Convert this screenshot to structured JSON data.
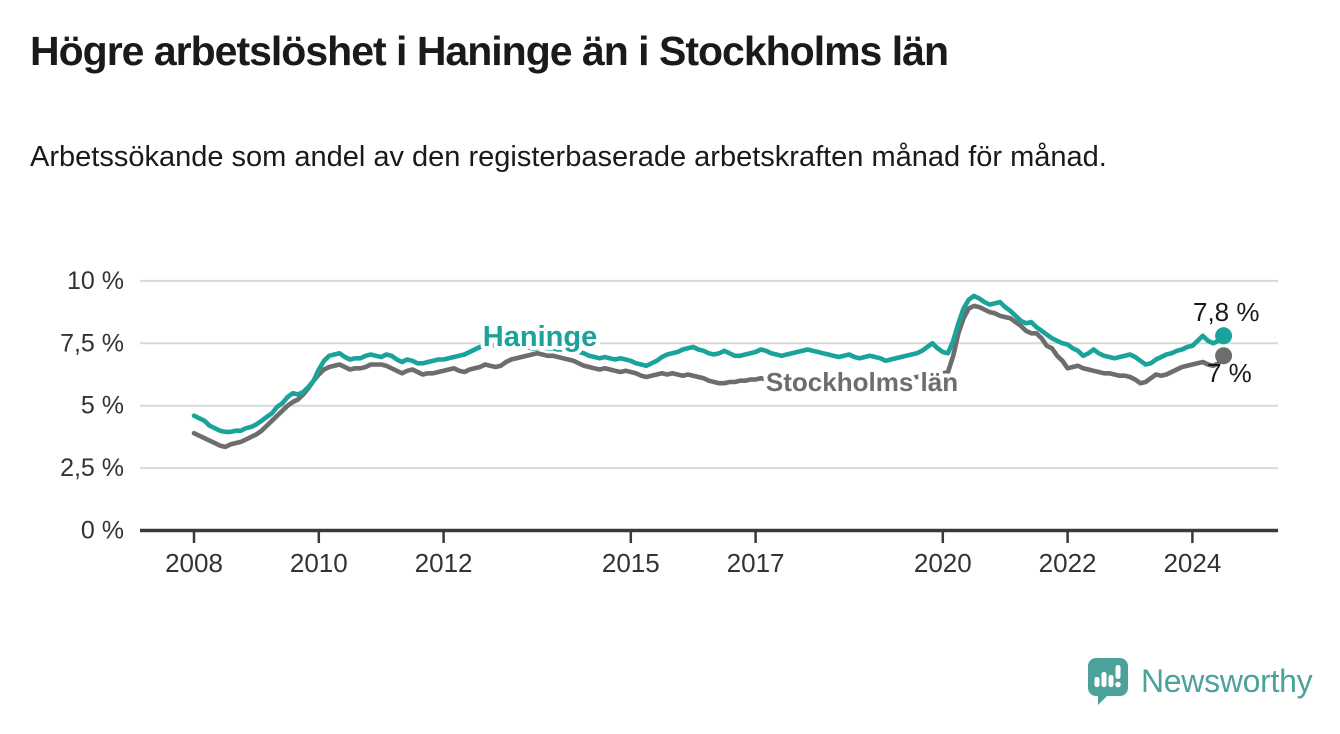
{
  "header": {
    "title": "Högre arbetslöshet i Haninge än i Stockholms län",
    "subtitle": "Arbetssökande som andel av den registerbaserade arbetskraften månad för månad."
  },
  "chart_data": {
    "type": "line",
    "title": "Högre arbetslöshet i Haninge än i Stockholms län",
    "x_unit": "month",
    "x_start": "2008-01",
    "x_end": "2024-07",
    "x_start_year": 2008,
    "ylim": [
      0,
      10
    ],
    "grid": true,
    "legend_position": "inline-labels",
    "yticks": [
      {
        "value": 10,
        "label": "10 %"
      },
      {
        "value": 7.5,
        "label": "7,5 %"
      },
      {
        "value": 5,
        "label": "5 %"
      },
      {
        "value": 2.5,
        "label": "2,5 %"
      },
      {
        "value": 0,
        "label": "0 %"
      }
    ],
    "xticks": [
      {
        "value": 2008,
        "label": "2008"
      },
      {
        "value": 2010,
        "label": "2010"
      },
      {
        "value": 2012,
        "label": "2012"
      },
      {
        "value": 2015,
        "label": "2015"
      },
      {
        "value": 2017,
        "label": "2017"
      },
      {
        "value": 2020,
        "label": "2020"
      },
      {
        "value": 2022,
        "label": "2022"
      },
      {
        "value": 2024,
        "label": "2024"
      }
    ],
    "series": [
      {
        "name": "Stockholms län",
        "color": "#6d6d6d",
        "end_label": "7 %",
        "end_value": 7.0,
        "values": [
          3.9,
          3.8,
          3.7,
          3.6,
          3.5,
          3.4,
          3.35,
          3.45,
          3.5,
          3.55,
          3.65,
          3.75,
          3.85,
          4.0,
          4.2,
          4.4,
          4.6,
          4.8,
          5.0,
          5.15,
          5.25,
          5.45,
          5.7,
          6.0,
          6.25,
          6.45,
          6.55,
          6.6,
          6.65,
          6.55,
          6.45,
          6.5,
          6.5,
          6.55,
          6.65,
          6.65,
          6.65,
          6.6,
          6.5,
          6.4,
          6.3,
          6.4,
          6.45,
          6.35,
          6.25,
          6.3,
          6.3,
          6.35,
          6.4,
          6.45,
          6.5,
          6.4,
          6.35,
          6.45,
          6.5,
          6.55,
          6.65,
          6.6,
          6.55,
          6.6,
          6.75,
          6.85,
          6.9,
          6.95,
          7.0,
          7.05,
          7.1,
          7.05,
          7.0,
          7.0,
          6.95,
          6.9,
          6.85,
          6.8,
          6.7,
          6.6,
          6.55,
          6.5,
          6.45,
          6.5,
          6.45,
          6.4,
          6.35,
          6.4,
          6.35,
          6.3,
          6.2,
          6.15,
          6.2,
          6.25,
          6.3,
          6.25,
          6.3,
          6.25,
          6.2,
          6.25,
          6.2,
          6.15,
          6.1,
          6.0,
          5.95,
          5.9,
          5.9,
          5.95,
          5.95,
          6.0,
          6.0,
          6.05,
          6.05,
          6.1,
          6.05,
          6.0,
          5.95,
          6.0,
          6.05,
          6.0,
          5.95,
          6.0,
          6.05,
          6.0,
          6.0,
          5.95,
          5.9,
          5.85,
          5.9,
          5.95,
          5.9,
          5.85,
          5.9,
          5.95,
          5.9,
          5.95,
          5.9,
          5.95,
          6.0,
          6.0,
          6.05,
          6.1,
          6.1,
          6.15,
          6.2,
          6.25,
          6.3,
          6.3,
          6.3,
          6.35,
          7.0,
          7.9,
          8.5,
          8.9,
          9.0,
          8.95,
          8.85,
          8.75,
          8.7,
          8.6,
          8.55,
          8.5,
          8.35,
          8.2,
          8.0,
          7.9,
          7.9,
          7.7,
          7.4,
          7.3,
          7.0,
          6.8,
          6.5,
          6.55,
          6.6,
          6.5,
          6.45,
          6.4,
          6.35,
          6.3,
          6.3,
          6.25,
          6.2,
          6.2,
          6.15,
          6.05,
          5.9,
          5.95,
          6.1,
          6.25,
          6.2,
          6.25,
          6.35,
          6.45,
          6.55,
          6.6,
          6.65,
          6.7,
          6.75,
          6.65,
          6.6,
          6.7,
          7.0
        ]
      },
      {
        "name": "Haninge",
        "color": "#1aa39a",
        "end_label": "7,8 %",
        "end_value": 7.8,
        "values": [
          4.6,
          4.5,
          4.4,
          4.2,
          4.1,
          4.0,
          3.95,
          3.95,
          4.0,
          4.0,
          4.1,
          4.15,
          4.25,
          4.4,
          4.55,
          4.7,
          4.95,
          5.1,
          5.35,
          5.5,
          5.45,
          5.55,
          5.75,
          6.0,
          6.45,
          6.8,
          7.0,
          7.05,
          7.1,
          6.95,
          6.85,
          6.9,
          6.9,
          7.0,
          7.05,
          7.0,
          6.95,
          7.05,
          7.0,
          6.85,
          6.75,
          6.85,
          6.8,
          6.7,
          6.7,
          6.75,
          6.8,
          6.85,
          6.85,
          6.9,
          6.95,
          7.0,
          7.05,
          7.15,
          7.25,
          7.35,
          7.4,
          7.45,
          7.4,
          7.45,
          7.5,
          7.45,
          7.4,
          7.35,
          7.35,
          7.3,
          7.3,
          7.35,
          7.3,
          7.3,
          7.25,
          7.25,
          7.2,
          7.25,
          7.15,
          7.1,
          7.0,
          6.95,
          6.9,
          6.95,
          6.9,
          6.85,
          6.9,
          6.85,
          6.8,
          6.7,
          6.65,
          6.6,
          6.7,
          6.8,
          6.95,
          7.05,
          7.1,
          7.15,
          7.25,
          7.3,
          7.35,
          7.25,
          7.2,
          7.1,
          7.05,
          7.1,
          7.2,
          7.1,
          7.0,
          7.0,
          7.05,
          7.1,
          7.15,
          7.25,
          7.2,
          7.1,
          7.05,
          7.0,
          7.05,
          7.1,
          7.15,
          7.2,
          7.25,
          7.2,
          7.15,
          7.1,
          7.05,
          7.0,
          6.95,
          7.0,
          7.05,
          6.95,
          6.9,
          6.95,
          7.0,
          6.95,
          6.9,
          6.8,
          6.85,
          6.9,
          6.95,
          7.0,
          7.05,
          7.1,
          7.2,
          7.35,
          7.5,
          7.3,
          7.15,
          7.1,
          7.6,
          8.3,
          8.9,
          9.25,
          9.4,
          9.3,
          9.15,
          9.05,
          9.1,
          9.15,
          8.95,
          8.8,
          8.6,
          8.4,
          8.3,
          8.35,
          8.15,
          8.0,
          7.85,
          7.7,
          7.6,
          7.5,
          7.45,
          7.3,
          7.2,
          7.0,
          7.1,
          7.25,
          7.1,
          7.0,
          6.95,
          6.9,
          6.95,
          7.0,
          7.05,
          6.95,
          6.8,
          6.65,
          6.7,
          6.85,
          6.95,
          7.05,
          7.1,
          7.2,
          7.25,
          7.35,
          7.4,
          7.6,
          7.8,
          7.6,
          7.5,
          7.6,
          7.8
        ]
      }
    ]
  },
  "footer": {
    "brand": "Newsworthy",
    "brand_color": "#4ba29a",
    "logo_icon": "newsworthy-logo-icon"
  },
  "colors": {
    "haninge_line": "#1aa39a",
    "stockholm_line": "#6d6d6d",
    "axis": "#3a3a3a",
    "gridline": "#d9d9d9",
    "text": "#1a1a1a"
  }
}
